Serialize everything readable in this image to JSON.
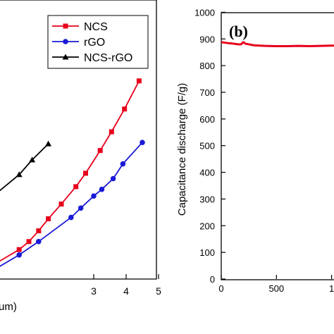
{
  "chart_data": [
    {
      "panel": "",
      "type": "line",
      "title": "",
      "xlabel": "um)",
      "ylabel": "",
      "xlim": [
        0,
        5
      ],
      "xticks": [
        "3",
        "4",
        "5"
      ],
      "legend_position": "top-right",
      "grid": false,
      "series": [
        {
          "name": "NCS",
          "color": "#e8001c",
          "marker": "square",
          "points": [
            [
              0.0,
              0.12
            ],
            [
              0.7,
              0.22
            ],
            [
              1.0,
              0.28
            ],
            [
              1.3,
              0.36
            ],
            [
              1.6,
              0.45
            ],
            [
              2.0,
              0.56
            ],
            [
              2.45,
              0.69
            ],
            [
              2.75,
              0.79
            ],
            [
              3.2,
              0.96
            ],
            [
              3.55,
              1.1
            ],
            [
              3.95,
              1.27
            ],
            [
              4.4,
              1.48
            ]
          ]
        },
        {
          "name": "rGO",
          "color": "#1a1ad6",
          "marker": "circle",
          "points": [
            [
              0.0,
              0.08
            ],
            [
              0.7,
              0.18
            ],
            [
              1.3,
              0.28
            ],
            [
              2.3,
              0.46
            ],
            [
              2.6,
              0.53
            ],
            [
              3.0,
              0.62
            ],
            [
              3.25,
              0.67
            ],
            [
              3.6,
              0.75
            ],
            [
              3.9,
              0.86
            ],
            [
              4.5,
              1.02
            ]
          ]
        },
        {
          "name": "NCS-rGO",
          "color": "#000000",
          "marker": "triangle",
          "points": [
            [
              0.0,
              0.64
            ],
            [
              0.7,
              0.78
            ],
            [
              1.1,
              0.89
            ],
            [
              1.6,
              1.01
            ]
          ]
        }
      ]
    },
    {
      "panel": "(b)",
      "type": "line",
      "title": "",
      "xlabel": "",
      "ylabel": "Capacitance discharge (F/g)",
      "xlim": [
        0,
        1060
      ],
      "ylim": [
        0,
        1000
      ],
      "yticks": [
        "0",
        "100",
        "200",
        "300",
        "400",
        "500",
        "600",
        "700",
        "800",
        "900",
        "1000"
      ],
      "xticks": [
        "0",
        "500",
        "1"
      ],
      "legend_position": "none",
      "grid": false,
      "series": [
        {
          "name": "",
          "color": "#e8001c",
          "x": [
            0,
            50,
            100,
            150,
            180,
            200,
            220,
            260,
            300,
            400,
            500,
            600,
            700,
            800,
            900,
            1000,
            1060
          ],
          "values": [
            888,
            885,
            883,
            880,
            880,
            888,
            882,
            879,
            876,
            874,
            873,
            873,
            874,
            873,
            874,
            875,
            875
          ]
        }
      ]
    }
  ]
}
